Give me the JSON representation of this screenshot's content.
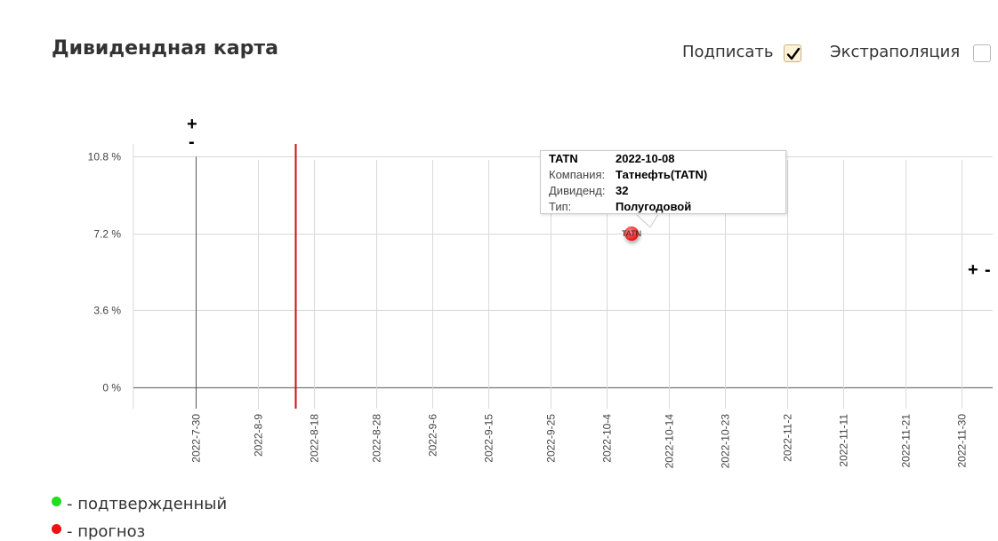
{
  "title": "Дивидендная карта",
  "options": {
    "sign_label": "Подписать",
    "sign_checked": true,
    "extrapolation_label": "Экстраполяция",
    "extrapolation_checked": false
  },
  "zoom": {
    "plus": "+",
    "minus": "-"
  },
  "tooltip": {
    "ticker": "TATN",
    "date": "2022-10-08",
    "company_label": "Компания:",
    "company": "Татнефть(TATN)",
    "dividend_label": "Дивиденд:",
    "dividend": "32",
    "type_label": "Тип:",
    "type": "Полугодовой"
  },
  "legend": {
    "confirmed": "- подтвержденный",
    "forecast": "- прогноз"
  },
  "colors": {
    "confirmed": "#22dd22",
    "forecast": "#ee1111",
    "today_line": "#cc1111",
    "grid": "#d9d9d9",
    "axis": "#555555"
  },
  "chart_data": {
    "type": "scatter",
    "x_type": "date",
    "xlim": [
      "2022-07-20",
      "2022-12-05"
    ],
    "ylim": [
      -1.0,
      11.4
    ],
    "x_ticks": [
      "2022-7-30",
      "2022-8-9",
      "2022-8-18",
      "2022-8-28",
      "2022-9-6",
      "2022-9-15",
      "2022-9-25",
      "2022-10-4",
      "2022-10-14",
      "2022-10-23",
      "2022-11-2",
      "2022-11-11",
      "2022-11-21",
      "2022-11-30"
    ],
    "y_ticks": [
      0,
      3.6,
      7.2,
      10.8
    ],
    "y_tick_labels": [
      "0 %",
      "3.6 %",
      "7.2 %",
      "10.8 %"
    ],
    "today": "2022-08-15",
    "points": [
      {
        "label": "TATN",
        "x": "2022-10-08",
        "y": 7.2,
        "status": "forecast"
      }
    ]
  }
}
